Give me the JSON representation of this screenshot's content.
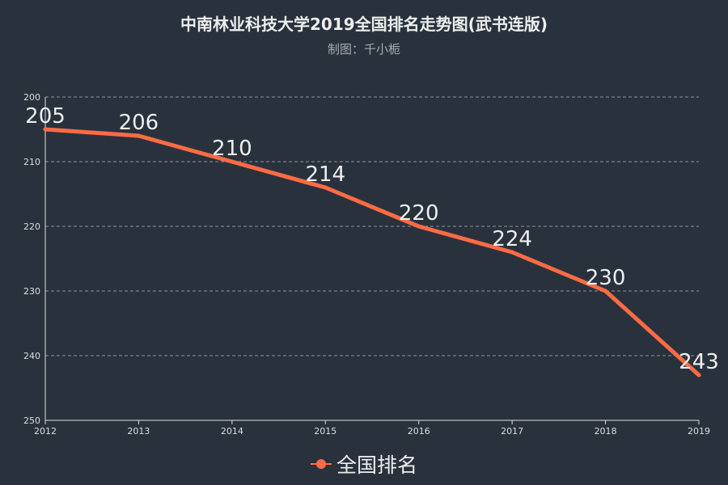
{
  "chart_data": {
    "type": "line",
    "title": "中南林业科技大学2019全国排名走势图(武书连版)",
    "subtitle": "制图：千小栀",
    "x": [
      "2012",
      "2013",
      "2014",
      "2015",
      "2016",
      "2017",
      "2018",
      "2019"
    ],
    "series": [
      {
        "name": "全国排名",
        "values": [
          205,
          206,
          210,
          214,
          220,
          224,
          230,
          243
        ]
      }
    ],
    "y_axis": {
      "inverse": true,
      "ylim": [
        200,
        250
      ],
      "ticks": [
        200,
        210,
        220,
        230,
        240,
        250
      ]
    },
    "grid": true,
    "data_labels": true,
    "legend_position": "bottom-center"
  },
  "colors": {
    "background": "#29323c",
    "series": "#ff6b45",
    "axis": "#dddddd",
    "grid": "#8a929c",
    "text": "#eeeeee",
    "subtitle": "#aaaaaa"
  }
}
